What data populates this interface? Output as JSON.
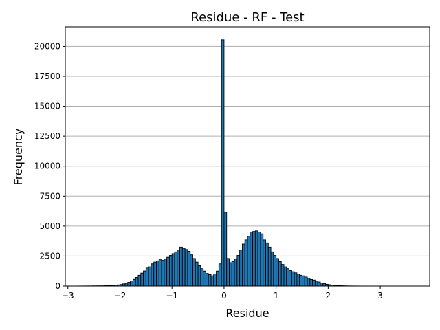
{
  "chart_data": {
    "type": "bar",
    "title": "Residue - RF - Test",
    "xlabel": "Residue",
    "ylabel": "Frequency",
    "xlim": [
      -3.05,
      3.95
    ],
    "ylim": [
      0,
      21630
    ],
    "xticks": [
      -3,
      -2,
      -1,
      0,
      1,
      2,
      3
    ],
    "xtick_labels": [
      "−3",
      "−2",
      "−1",
      "0",
      "1",
      "2",
      "3"
    ],
    "yticks": [
      0,
      2500,
      5000,
      7500,
      10000,
      12500,
      15000,
      17500,
      20000
    ],
    "ytick_labels": [
      "0",
      "2500",
      "5000",
      "7500",
      "10000",
      "12500",
      "15000",
      "17500",
      "20000"
    ],
    "grid": "y",
    "bar_color": "#1f77b4",
    "edge_color": "#000000",
    "bin_width": 0.05,
    "bins": [
      [
        -2.95,
        1
      ],
      [
        -2.9,
        2
      ],
      [
        -2.85,
        3
      ],
      [
        -2.8,
        5
      ],
      [
        -2.75,
        6
      ],
      [
        -2.7,
        8
      ],
      [
        -2.65,
        10
      ],
      [
        -2.6,
        12
      ],
      [
        -2.55,
        14
      ],
      [
        -2.5,
        16
      ],
      [
        -2.45,
        18
      ],
      [
        -2.4,
        20
      ],
      [
        -2.35,
        22
      ],
      [
        -2.3,
        30
      ],
      [
        -2.25,
        40
      ],
      [
        -2.2,
        50
      ],
      [
        -2.15,
        60
      ],
      [
        -2.1,
        80
      ],
      [
        -2.05,
        100
      ],
      [
        -2.0,
        130
      ],
      [
        -1.95,
        180
      ],
      [
        -1.9,
        240
      ],
      [
        -1.85,
        320
      ],
      [
        -1.8,
        420
      ],
      [
        -1.75,
        560
      ],
      [
        -1.7,
        720
      ],
      [
        -1.65,
        900
      ],
      [
        -1.6,
        1080
      ],
      [
        -1.55,
        1260
      ],
      [
        -1.5,
        1500
      ],
      [
        -1.45,
        1600
      ],
      [
        -1.4,
        1850
      ],
      [
        -1.35,
        2000
      ],
      [
        -1.3,
        2100
      ],
      [
        -1.25,
        2200
      ],
      [
        -1.2,
        2150
      ],
      [
        -1.15,
        2250
      ],
      [
        -1.1,
        2400
      ],
      [
        -1.05,
        2550
      ],
      [
        -1.0,
        2700
      ],
      [
        -0.95,
        2850
      ],
      [
        -0.9,
        3000
      ],
      [
        -0.85,
        3250
      ],
      [
        -0.8,
        3150
      ],
      [
        -0.75,
        3050
      ],
      [
        -0.7,
        2900
      ],
      [
        -0.65,
        2600
      ],
      [
        -0.6,
        2300
      ],
      [
        -0.55,
        2000
      ],
      [
        -0.5,
        1700
      ],
      [
        -0.45,
        1450
      ],
      [
        -0.4,
        1250
      ],
      [
        -0.35,
        1050
      ],
      [
        -0.3,
        950
      ],
      [
        -0.25,
        850
      ],
      [
        -0.2,
        1000
      ],
      [
        -0.15,
        1250
      ],
      [
        -0.1,
        1850
      ],
      [
        -0.05,
        20550
      ],
      [
        0.0,
        6150
      ],
      [
        0.05,
        2300
      ],
      [
        0.1,
        1950
      ],
      [
        0.15,
        2050
      ],
      [
        0.2,
        2250
      ],
      [
        0.25,
        2550
      ],
      [
        0.3,
        3000
      ],
      [
        0.35,
        3500
      ],
      [
        0.4,
        3850
      ],
      [
        0.45,
        4150
      ],
      [
        0.5,
        4500
      ],
      [
        0.55,
        4550
      ],
      [
        0.6,
        4600
      ],
      [
        0.65,
        4500
      ],
      [
        0.7,
        4350
      ],
      [
        0.75,
        3850
      ],
      [
        0.8,
        3600
      ],
      [
        0.85,
        3250
      ],
      [
        0.9,
        2850
      ],
      [
        0.95,
        2550
      ],
      [
        1.0,
        2300
      ],
      [
        1.05,
        2050
      ],
      [
        1.1,
        1800
      ],
      [
        1.15,
        1600
      ],
      [
        1.2,
        1450
      ],
      [
        1.25,
        1300
      ],
      [
        1.3,
        1200
      ],
      [
        1.35,
        1100
      ],
      [
        1.4,
        1000
      ],
      [
        1.45,
        900
      ],
      [
        1.5,
        850
      ],
      [
        1.55,
        750
      ],
      [
        1.6,
        650
      ],
      [
        1.65,
        550
      ],
      [
        1.7,
        500
      ],
      [
        1.75,
        420
      ],
      [
        1.8,
        340
      ],
      [
        1.85,
        260
      ],
      [
        1.9,
        200
      ],
      [
        1.95,
        150
      ],
      [
        2.0,
        110
      ],
      [
        2.05,
        80
      ],
      [
        2.1,
        60
      ],
      [
        2.15,
        45
      ],
      [
        2.2,
        35
      ],
      [
        2.25,
        25
      ],
      [
        2.3,
        20
      ],
      [
        2.35,
        14
      ],
      [
        2.4,
        10
      ],
      [
        2.45,
        8
      ],
      [
        2.5,
        6
      ],
      [
        2.55,
        5
      ],
      [
        2.6,
        4
      ],
      [
        2.65,
        3
      ],
      [
        2.7,
        3
      ],
      [
        2.75,
        2
      ],
      [
        2.8,
        2
      ],
      [
        2.85,
        2
      ],
      [
        2.9,
        1
      ],
      [
        2.95,
        1
      ],
      [
        3.0,
        1
      ],
      [
        3.05,
        1
      ],
      [
        3.1,
        1
      ],
      [
        3.15,
        1
      ],
      [
        3.2,
        1
      ],
      [
        3.25,
        1
      ],
      [
        3.3,
        1
      ],
      [
        3.35,
        1
      ],
      [
        3.4,
        1
      ],
      [
        3.45,
        1
      ],
      [
        3.5,
        1
      ],
      [
        3.55,
        1
      ],
      [
        3.6,
        1
      ]
    ]
  }
}
